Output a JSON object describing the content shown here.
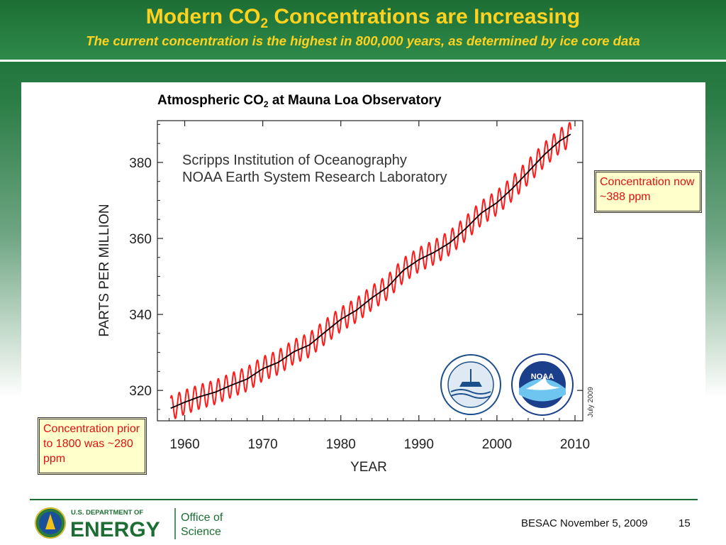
{
  "header": {
    "title_main": "Modern CO",
    "title_sub": "2",
    "title_rest": " Concentrations are Increasing",
    "subtitle": "The current concentration is the highest in 800,000 years, as determined by ice core data"
  },
  "callouts": {
    "now": "Concentration now ~388 ppm",
    "prior": "Concentration prior to 1800 was ~280 ppm"
  },
  "footer": {
    "logo_dept": "U.S. DEPARTMENT OF",
    "logo_energy": "ENERGY",
    "logo_office_line1": "Office of",
    "logo_office_line2": "Science",
    "event": "BESAC November 5, 2009",
    "page": "15"
  },
  "colors": {
    "monthly_line": "#ff1a1a",
    "trend_line": "#000000",
    "title_yellow": "#ffd21f",
    "header_green": "#1d6e34"
  },
  "chart_data": {
    "type": "line",
    "title_main": "Atmospheric CO",
    "title_sub": "2",
    "title_rest": " at Mauna Loa Observatory",
    "xlabel": "YEAR",
    "ylabel": "PARTS PER MILLION",
    "xlim": [
      1956.5,
      2011
    ],
    "ylim": [
      312,
      391
    ],
    "xticks": [
      1960,
      1970,
      1980,
      1990,
      2000,
      2010
    ],
    "yticks": [
      320,
      340,
      360,
      380
    ],
    "grid": false,
    "annotations": [
      "Scripps Institution of Oceanography",
      "NOAA Earth System Research Laboratory",
      "July 2009"
    ],
    "seasonal_amplitude_ppm": 3.2,
    "series": [
      {
        "role": "monthly",
        "color": "#ff1a1a",
        "note": "monthly values oscillate seasonally around the trend with the given amplitude"
      },
      {
        "role": "trend",
        "color": "#000000",
        "x": [
          1958.2,
          1960,
          1962,
          1964,
          1966,
          1968,
          1970,
          1972,
          1974,
          1976,
          1978,
          1980,
          1982,
          1984,
          1986,
          1988,
          1990,
          1992,
          1994,
          1996,
          1998,
          2000,
          2002,
          2004,
          2006,
          2008,
          2009.5
        ],
        "values": [
          315.3,
          316.9,
          318.4,
          319.6,
          321.4,
          323.0,
          325.7,
          327.4,
          330.2,
          332.0,
          335.4,
          338.7,
          341.1,
          344.4,
          347.2,
          351.6,
          354.4,
          356.4,
          358.9,
          362.6,
          366.7,
          369.4,
          373.2,
          377.5,
          381.9,
          385.6,
          387.5
        ]
      }
    ]
  }
}
